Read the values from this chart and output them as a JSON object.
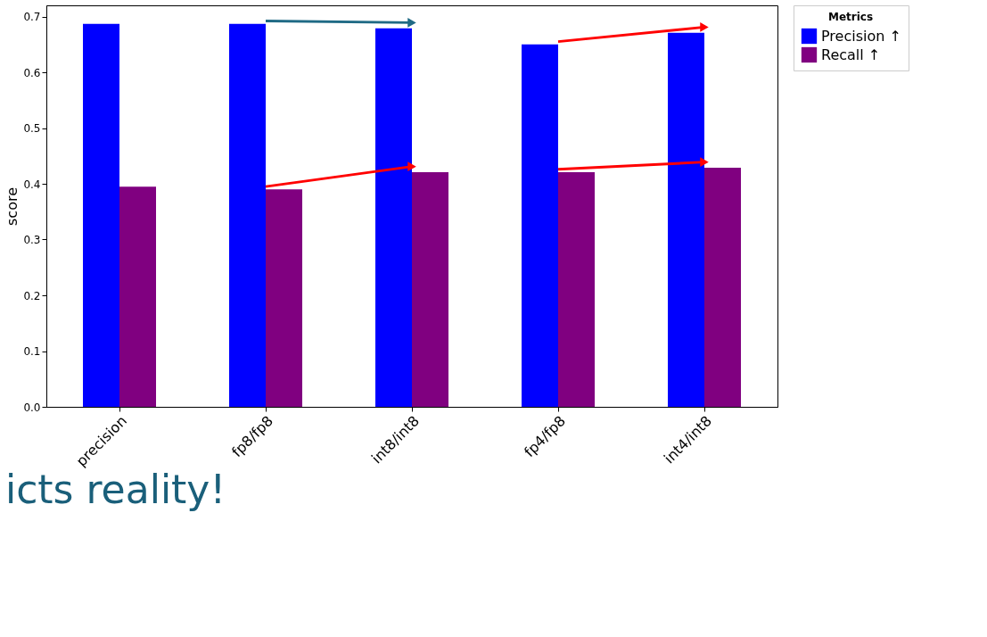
{
  "chart_data": {
    "type": "bar",
    "categories": [
      "precision",
      "fp8/fp8",
      "int8/int8",
      "fp4/fp8",
      "int4/int8"
    ],
    "series": [
      {
        "name": "Precision ↑",
        "color": "#0000ff",
        "values": [
          0.687,
          0.687,
          0.679,
          0.65,
          0.671
        ]
      },
      {
        "name": "Recall ↑",
        "color": "#800080",
        "values": [
          0.395,
          0.39,
          0.421,
          0.421,
          0.429
        ]
      }
    ],
    "ylabel": "score",
    "legend_title": "Metrics",
    "legend": "right",
    "ylim": [
      0,
      0.72
    ],
    "yticks": [
      {
        "value": 0,
        "label": "0.0"
      },
      0.1,
      0.2,
      0.3,
      0.4,
      0.5,
      0.6,
      0.7
    ],
    "grid": false,
    "annotations": [
      "icts reality!"
    ]
  }
}
